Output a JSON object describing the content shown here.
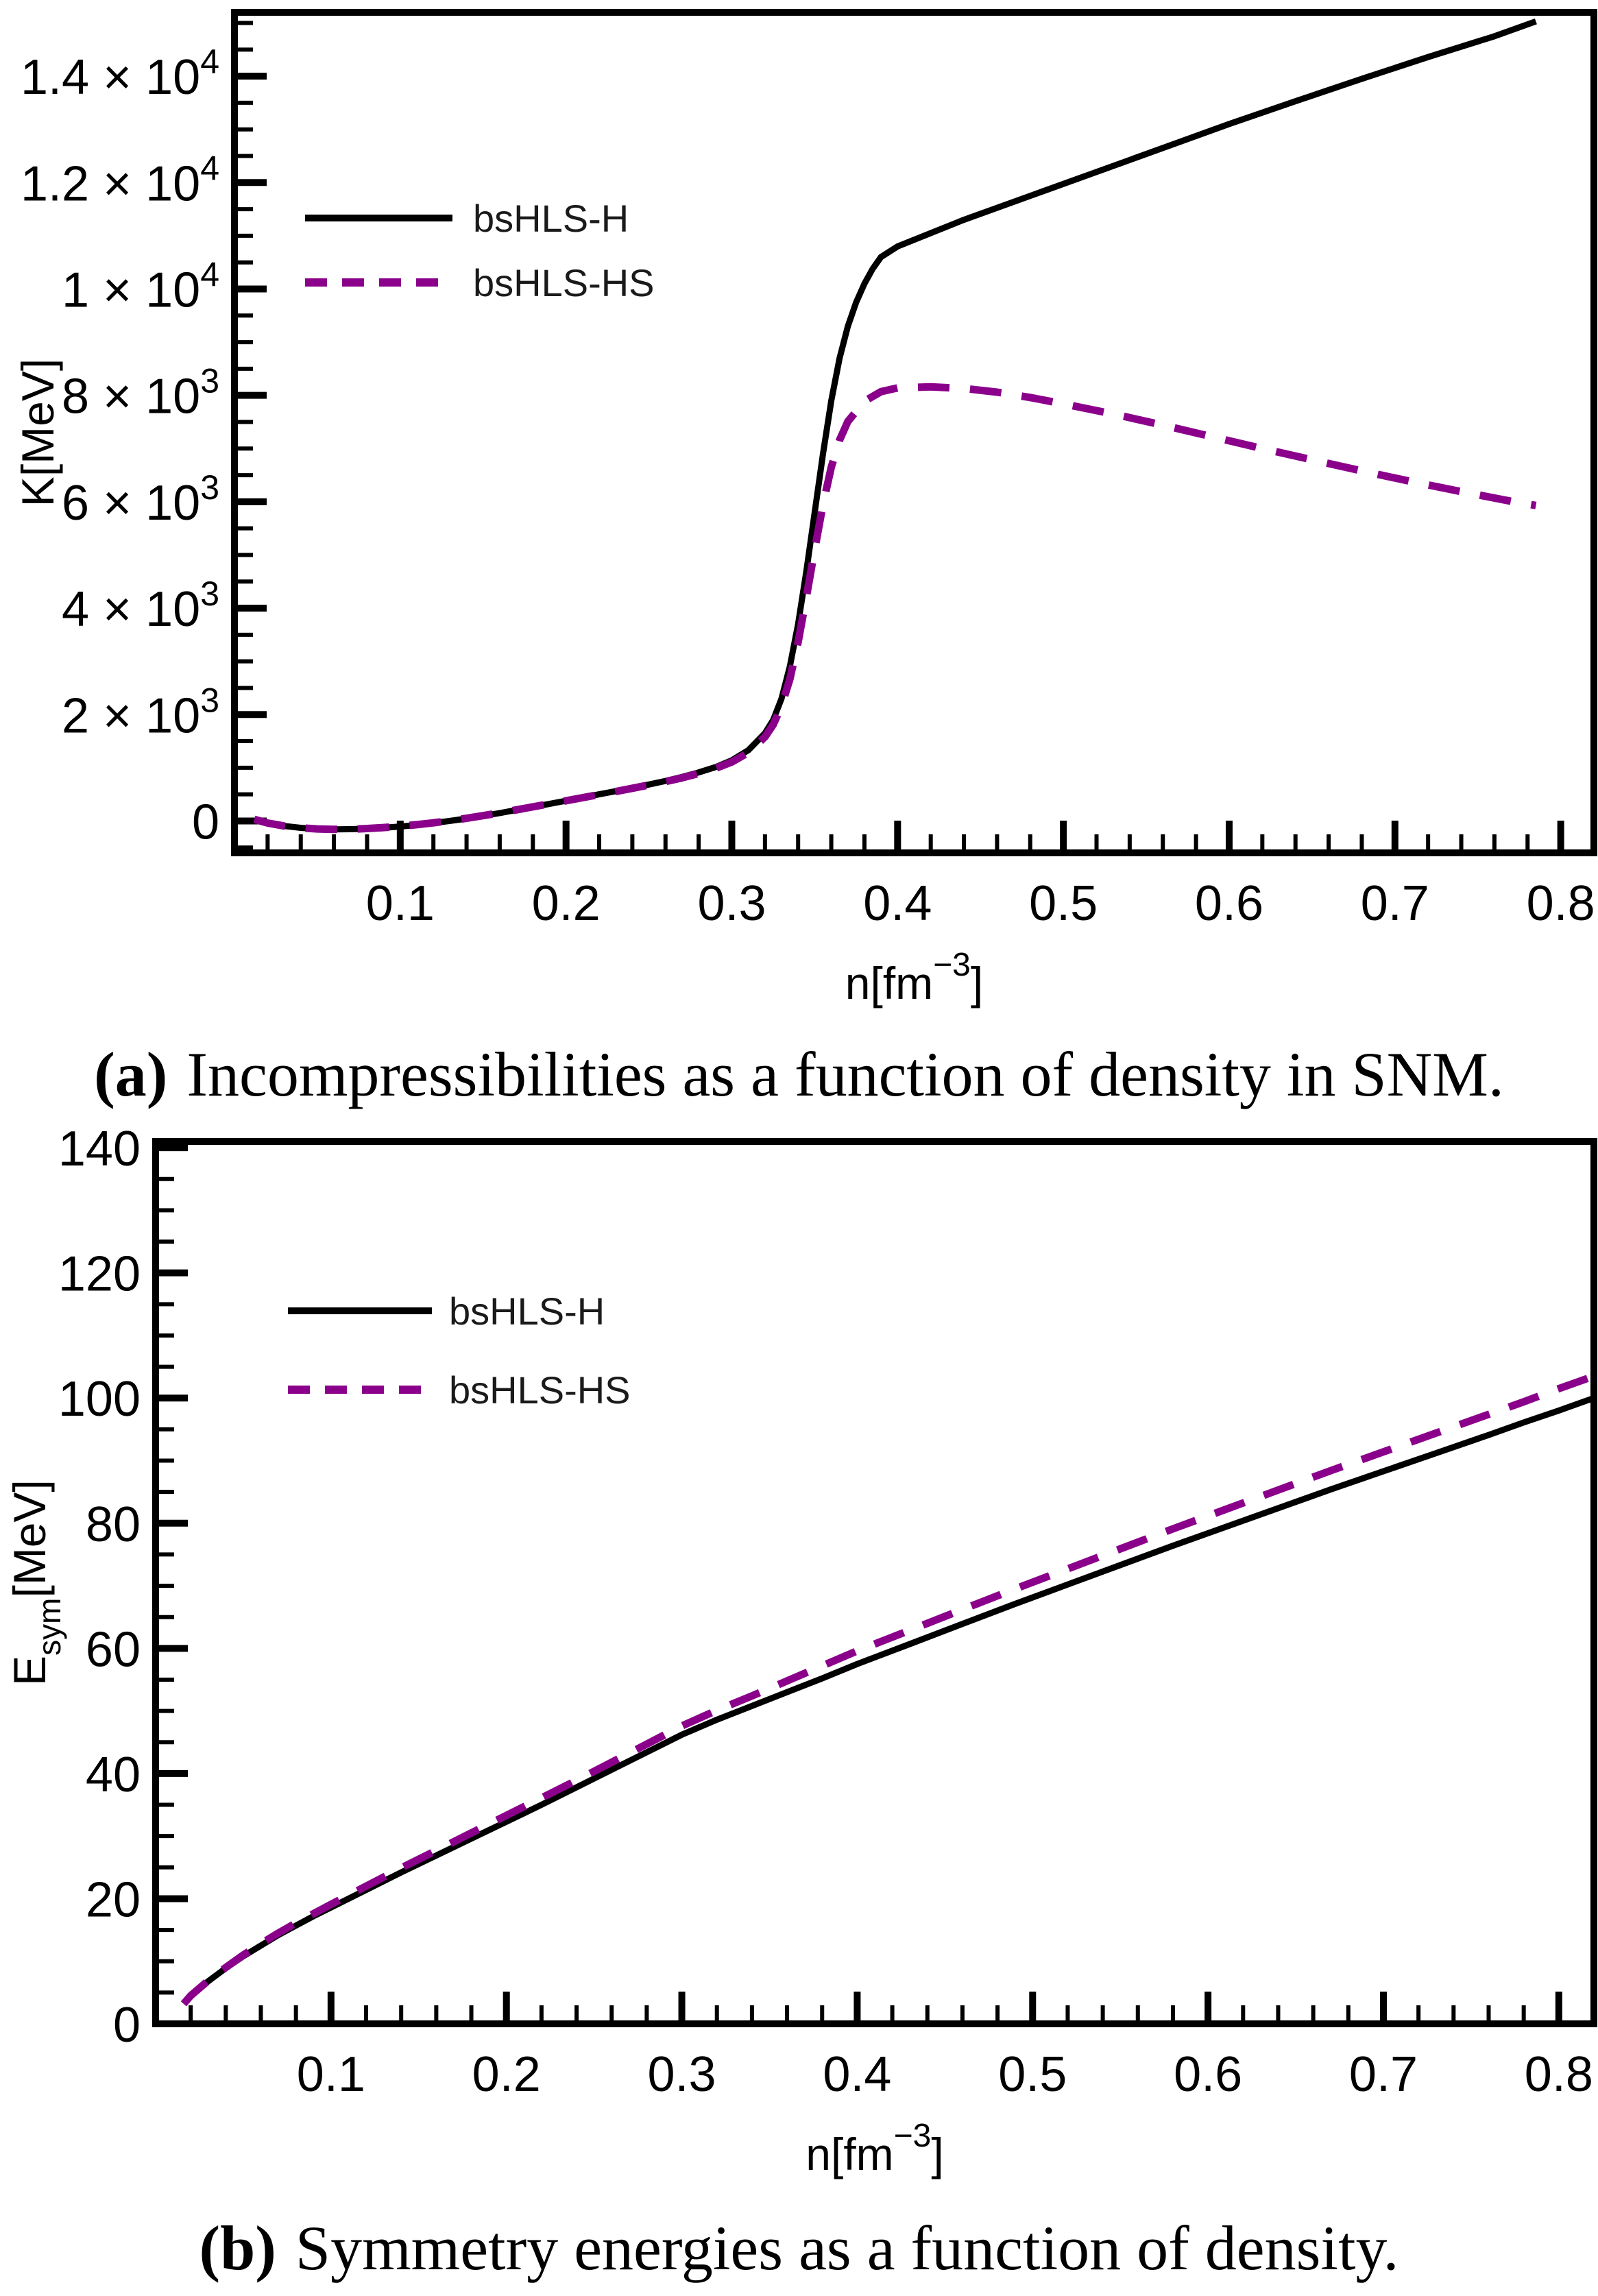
{
  "figure": {
    "background": "#ffffff",
    "axis_color": "#000000"
  },
  "captions": [
    {
      "tag": "(a)",
      "text": "Incompressibilities as a function of density in SNM."
    },
    {
      "tag": "(b)",
      "text": "Symmetry energies as a function of density."
    }
  ],
  "chart_data": [
    {
      "id": "incompressibility-snm",
      "type": "line",
      "title": "",
      "xlabel": {
        "pre": "n[fm",
        "sup": "−3",
        "post": "]"
      },
      "ylabel": {
        "pre": "K",
        "sub": "",
        "post": "[MeV]"
      },
      "xlim": [
        0,
        0.82
      ],
      "ylim": [
        -600,
        15200
      ],
      "grid": false,
      "legend_position": "upper-left-inside",
      "x_ticks": [
        {
          "v": 0.1,
          "l": "0.1"
        },
        {
          "v": 0.2,
          "l": "0.2"
        },
        {
          "v": 0.3,
          "l": "0.3"
        },
        {
          "v": 0.4,
          "l": "0.4"
        },
        {
          "v": 0.5,
          "l": "0.5"
        },
        {
          "v": 0.6,
          "l": "0.6"
        },
        {
          "v": 0.7,
          "l": "0.7"
        },
        {
          "v": 0.8,
          "l": "0.8"
        }
      ],
      "x_minor_step": 0.02,
      "y_ticks": [
        {
          "v": 0,
          "l": "0"
        },
        {
          "v": 2000,
          "l": "2 × 10",
          "sup": "3"
        },
        {
          "v": 4000,
          "l": "4 × 10",
          "sup": "3"
        },
        {
          "v": 6000,
          "l": "6 × 10",
          "sup": "3"
        },
        {
          "v": 8000,
          "l": "8 × 10",
          "sup": "3"
        },
        {
          "v": 10000,
          "l": "1 × 10",
          "sup": "4"
        },
        {
          "v": 12000,
          "l": "1.2 × 10",
          "sup": "4"
        },
        {
          "v": 14000,
          "l": "1.4 × 10",
          "sup": "4"
        }
      ],
      "y_minor_step": 500,
      "legend": [
        {
          "label": "bsHLS-H",
          "color": "#000000",
          "dashed": false
        },
        {
          "label": "bsHLS-HS",
          "color": "#8B008B",
          "dashed": true
        }
      ],
      "series": [
        {
          "name": "bsHLS-H",
          "color": "#000000",
          "dashed": false,
          "points": [
            [
              0.012,
              30
            ],
            [
              0.02,
              -40
            ],
            [
              0.03,
              -95
            ],
            [
              0.04,
              -130
            ],
            [
              0.05,
              -150
            ],
            [
              0.06,
              -158
            ],
            [
              0.07,
              -155
            ],
            [
              0.08,
              -145
            ],
            [
              0.09,
              -128
            ],
            [
              0.1,
              -105
            ],
            [
              0.11,
              -75
            ],
            [
              0.12,
              -40
            ],
            [
              0.13,
              0
            ],
            [
              0.14,
              45
            ],
            [
              0.15,
              95
            ],
            [
              0.16,
              148
            ],
            [
              0.17,
              205
            ],
            [
              0.18,
              262
            ],
            [
              0.19,
              320
            ],
            [
              0.2,
              380
            ],
            [
              0.21,
              440
            ],
            [
              0.22,
              500
            ],
            [
              0.23,
              560
            ],
            [
              0.24,
              622
            ],
            [
              0.25,
              685
            ],
            [
              0.26,
              752
            ],
            [
              0.27,
              828
            ],
            [
              0.28,
              912
            ],
            [
              0.29,
              1010
            ],
            [
              0.3,
              1140
            ],
            [
              0.31,
              1330
            ],
            [
              0.32,
              1650
            ],
            [
              0.325,
              1900
            ],
            [
              0.33,
              2300
            ],
            [
              0.335,
              2900
            ],
            [
              0.34,
              3700
            ],
            [
              0.345,
              4700
            ],
            [
              0.35,
              5800
            ],
            [
              0.355,
              6900
            ],
            [
              0.36,
              7900
            ],
            [
              0.365,
              8700
            ],
            [
              0.37,
              9300
            ],
            [
              0.375,
              9750
            ],
            [
              0.38,
              10100
            ],
            [
              0.385,
              10380
            ],
            [
              0.39,
              10600
            ],
            [
              0.4,
              10800
            ],
            [
              0.44,
              11300
            ],
            [
              0.48,
              11750
            ],
            [
              0.52,
              12200
            ],
            [
              0.56,
              12650
            ],
            [
              0.6,
              13100
            ],
            [
              0.64,
              13530
            ],
            [
              0.68,
              13950
            ],
            [
              0.72,
              14360
            ],
            [
              0.76,
              14750
            ],
            [
              0.785,
              15030
            ]
          ]
        },
        {
          "name": "bsHLS-HS",
          "color": "#8B008B",
          "dashed": true,
          "points": [
            [
              0.012,
              30
            ],
            [
              0.02,
              -40
            ],
            [
              0.03,
              -95
            ],
            [
              0.04,
              -130
            ],
            [
              0.05,
              -150
            ],
            [
              0.06,
              -158
            ],
            [
              0.07,
              -155
            ],
            [
              0.08,
              -143
            ],
            [
              0.09,
              -125
            ],
            [
              0.1,
              -100
            ],
            [
              0.11,
              -70
            ],
            [
              0.12,
              -35
            ],
            [
              0.13,
              5
            ],
            [
              0.14,
              50
            ],
            [
              0.15,
              100
            ],
            [
              0.16,
              152
            ],
            [
              0.17,
              208
            ],
            [
              0.18,
              265
            ],
            [
              0.19,
              322
            ],
            [
              0.2,
              380
            ],
            [
              0.21,
              438
            ],
            [
              0.22,
              496
            ],
            [
              0.23,
              554
            ],
            [
              0.24,
              614
            ],
            [
              0.25,
              676
            ],
            [
              0.26,
              740
            ],
            [
              0.27,
              810
            ],
            [
              0.28,
              892
            ],
            [
              0.29,
              988
            ],
            [
              0.3,
              1108
            ],
            [
              0.31,
              1285
            ],
            [
              0.32,
              1580
            ],
            [
              0.325,
              1810
            ],
            [
              0.33,
              2160
            ],
            [
              0.335,
              2660
            ],
            [
              0.34,
              3360
            ],
            [
              0.345,
              4210
            ],
            [
              0.35,
              5100
            ],
            [
              0.355,
              5950
            ],
            [
              0.36,
              6650
            ],
            [
              0.365,
              7160
            ],
            [
              0.37,
              7510
            ],
            [
              0.38,
              7890
            ],
            [
              0.39,
              8070
            ],
            [
              0.4,
              8140
            ],
            [
              0.42,
              8160
            ],
            [
              0.44,
              8130
            ],
            [
              0.46,
              8060
            ],
            [
              0.48,
              7960
            ],
            [
              0.5,
              7840
            ],
            [
              0.53,
              7650
            ],
            [
              0.56,
              7440
            ],
            [
              0.59,
              7220
            ],
            [
              0.62,
              7000
            ],
            [
              0.65,
              6790
            ],
            [
              0.68,
              6580
            ],
            [
              0.71,
              6380
            ],
            [
              0.74,
              6190
            ],
            [
              0.77,
              6010
            ],
            [
              0.785,
              5930
            ]
          ]
        }
      ]
    },
    {
      "id": "symmetry-energy",
      "type": "line",
      "title": "",
      "xlabel": {
        "pre": "n[fm",
        "sup": "−3",
        "post": "]"
      },
      "ylabel": {
        "pre": "E",
        "sub": "sym",
        "post": "[MeV]"
      },
      "xlim": [
        0,
        0.82
      ],
      "ylim": [
        0,
        141
      ],
      "grid": false,
      "legend_position": "upper-left-inside",
      "x_ticks": [
        {
          "v": 0.1,
          "l": "0.1"
        },
        {
          "v": 0.2,
          "l": "0.2"
        },
        {
          "v": 0.3,
          "l": "0.3"
        },
        {
          "v": 0.4,
          "l": "0.4"
        },
        {
          "v": 0.5,
          "l": "0.5"
        },
        {
          "v": 0.6,
          "l": "0.6"
        },
        {
          "v": 0.7,
          "l": "0.7"
        },
        {
          "v": 0.8,
          "l": "0.8"
        }
      ],
      "x_minor_step": 0.02,
      "y_ticks": [
        {
          "v": 0,
          "l": "0"
        },
        {
          "v": 20,
          "l": "20"
        },
        {
          "v": 40,
          "l": "40"
        },
        {
          "v": 60,
          "l": "60"
        },
        {
          "v": 80,
          "l": "80"
        },
        {
          "v": 100,
          "l": "100"
        },
        {
          "v": 120,
          "l": "120"
        },
        {
          "v": 140,
          "l": "140"
        }
      ],
      "y_minor_step": 5,
      "legend": [
        {
          "label": "bsHLS-H",
          "color": "#000000",
          "dashed": false
        },
        {
          "label": "bsHLS-HS",
          "color": "#8B008B",
          "dashed": true
        }
      ],
      "series": [
        {
          "name": "bsHLS-H",
          "color": "#000000",
          "dashed": false,
          "points": [
            [
              0.016,
              3.2
            ],
            [
              0.02,
              4.5
            ],
            [
              0.03,
              6.8
            ],
            [
              0.04,
              8.9
            ],
            [
              0.05,
              10.8
            ],
            [
              0.06,
              12.5
            ],
            [
              0.07,
              14.2
            ],
            [
              0.08,
              15.7
            ],
            [
              0.09,
              17.2
            ],
            [
              0.1,
              18.6
            ],
            [
              0.12,
              21.4
            ],
            [
              0.14,
              24.2
            ],
            [
              0.16,
              26.9
            ],
            [
              0.18,
              29.6
            ],
            [
              0.2,
              32.3
            ],
            [
              0.22,
              35.0
            ],
            [
              0.24,
              37.8
            ],
            [
              0.26,
              40.6
            ],
            [
              0.28,
              43.4
            ],
            [
              0.3,
              46.2
            ],
            [
              0.32,
              48.6
            ],
            [
              0.34,
              50.8
            ],
            [
              0.36,
              53.0
            ],
            [
              0.38,
              55.2
            ],
            [
              0.4,
              57.5
            ],
            [
              0.43,
              60.7
            ],
            [
              0.46,
              63.9
            ],
            [
              0.49,
              67.1
            ],
            [
              0.52,
              70.2
            ],
            [
              0.55,
              73.3
            ],
            [
              0.58,
              76.4
            ],
            [
              0.61,
              79.4
            ],
            [
              0.64,
              82.4
            ],
            [
              0.67,
              85.4
            ],
            [
              0.7,
              88.3
            ],
            [
              0.73,
              91.2
            ],
            [
              0.76,
              94.1
            ],
            [
              0.78,
              96.1
            ],
            [
              0.8,
              98.0
            ],
            [
              0.82,
              100.0
            ]
          ]
        },
        {
          "name": "bsHLS-HS",
          "color": "#8B008B",
          "dashed": true,
          "points": [
            [
              0.016,
              3.2
            ],
            [
              0.02,
              4.5
            ],
            [
              0.03,
              6.9
            ],
            [
              0.04,
              9.0
            ],
            [
              0.05,
              11.0
            ],
            [
              0.06,
              12.8
            ],
            [
              0.07,
              14.5
            ],
            [
              0.08,
              16.1
            ],
            [
              0.09,
              17.6
            ],
            [
              0.1,
              19.1
            ],
            [
              0.12,
              22.0
            ],
            [
              0.14,
              24.9
            ],
            [
              0.16,
              27.7
            ],
            [
              0.18,
              30.5
            ],
            [
              0.2,
              33.3
            ],
            [
              0.22,
              36.1
            ],
            [
              0.24,
              38.9
            ],
            [
              0.26,
              41.8
            ],
            [
              0.28,
              44.7
            ],
            [
              0.3,
              47.6
            ],
            [
              0.32,
              50.1
            ],
            [
              0.34,
              52.4
            ],
            [
              0.36,
              54.8
            ],
            [
              0.38,
              57.2
            ],
            [
              0.4,
              59.6
            ],
            [
              0.43,
              62.9
            ],
            [
              0.46,
              66.2
            ],
            [
              0.49,
              69.5
            ],
            [
              0.52,
              72.7
            ],
            [
              0.55,
              75.9
            ],
            [
              0.58,
              79.1
            ],
            [
              0.61,
              82.2
            ],
            [
              0.64,
              85.3
            ],
            [
              0.67,
              88.4
            ],
            [
              0.7,
              91.4
            ],
            [
              0.73,
              94.4
            ],
            [
              0.76,
              97.4
            ],
            [
              0.78,
              99.4
            ],
            [
              0.8,
              101.5
            ],
            [
              0.82,
              103.5
            ]
          ]
        }
      ]
    }
  ]
}
